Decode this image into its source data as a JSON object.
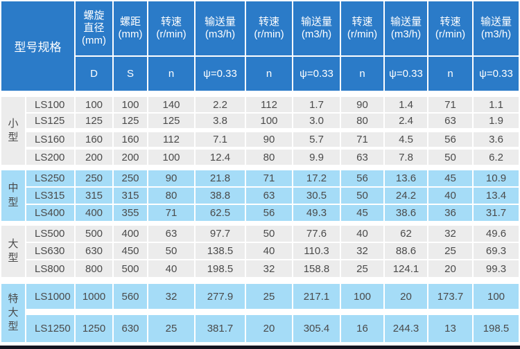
{
  "colors": {
    "header_bg": "#2b7bc8",
    "header_text": "#ffffff",
    "row_gray": "#ececec",
    "row_blue": "#a5dcf7",
    "text": "#4a4a4a",
    "bottom_bar": "#14141f"
  },
  "table": {
    "corner": "型号规格",
    "columns": [
      {
        "label": "螺旋直径",
        "unit": "(mm)",
        "sub": "D"
      },
      {
        "label": "螺距",
        "unit": "(mm)",
        "sub": "S"
      },
      {
        "label": "转速",
        "unit": "(r/min)",
        "sub": "n"
      },
      {
        "label": "输送量",
        "unit": "(m3/h)",
        "sub": "ψ=0.33"
      },
      {
        "label": "转速",
        "unit": "(r/min)",
        "sub": "n"
      },
      {
        "label": "输送量",
        "unit": "(m3/h)",
        "sub": "ψ=0.33"
      },
      {
        "label": "转速",
        "unit": "(r/min)",
        "sub": "n"
      },
      {
        "label": "输送量",
        "unit": "(m3/h)",
        "sub": "ψ=0.33"
      },
      {
        "label": "转速",
        "unit": "(r/min)",
        "sub": "n"
      },
      {
        "label": "输送量",
        "unit": "(m3/h)",
        "sub": "ψ=0.33"
      }
    ],
    "groups": [
      {
        "name": "小型",
        "tone": "gray",
        "rows": [
          {
            "model": "LS100",
            "values": [
              "100",
              "100",
              "140",
              "2.2",
              "112",
              "1.7",
              "90",
              "1.4",
              "71",
              "1.1"
            ]
          },
          {
            "model": "LS125",
            "values": [
              "125",
              "125",
              "125",
              "3.8",
              "100",
              "3.0",
              "80",
              "2.4",
              "63",
              "1.9"
            ]
          },
          {
            "model": "LS160",
            "values": [
              "160",
              "160",
              "112",
              "7.1",
              "90",
              "5.7",
              "71",
              "4.5",
              "56",
              "3.6"
            ]
          },
          {
            "model": "LS200",
            "values": [
              "200",
              "200",
              "100",
              "12.4",
              "80",
              "9.9",
              "63",
              "7.8",
              "50",
              "6.2"
            ]
          }
        ]
      },
      {
        "name": "中型",
        "tone": "blue",
        "rows": [
          {
            "model": "LS250",
            "values": [
              "250",
              "250",
              "90",
              "21.8",
              "71",
              "17.2",
              "56",
              "13.6",
              "45",
              "10.9"
            ]
          },
          {
            "model": "LS315",
            "values": [
              "315",
              "315",
              "80",
              "38.8",
              "63",
              "30.5",
              "50",
              "24.2",
              "40",
              "13.4"
            ]
          },
          {
            "model": "LS400",
            "values": [
              "400",
              "355",
              "71",
              "62.5",
              "56",
              "49.3",
              "45",
              "38.6",
              "36",
              "31.7"
            ]
          }
        ]
      },
      {
        "name": "大型",
        "tone": "gray",
        "rows": [
          {
            "model": "LS500",
            "values": [
              "500",
              "400",
              "63",
              "97.7",
              "50",
              "77.6",
              "40",
              "62",
              "32",
              "49.6"
            ]
          },
          {
            "model": "LS630",
            "values": [
              "630",
              "450",
              "50",
              "138.5",
              "40",
              "110.3",
              "32",
              "88.6",
              "25",
              "69.3"
            ]
          },
          {
            "model": "LS800",
            "values": [
              "800",
              "500",
              "40",
              "198.5",
              "32",
              "158.8",
              "25",
              "124.1",
              "20",
              "99.3"
            ]
          }
        ]
      },
      {
        "name": "特大型",
        "tone": "blue",
        "rows": [
          {
            "model": "LS1000",
            "values": [
              "1000",
              "560",
              "32",
              "277.9",
              "25",
              "217.1",
              "100",
              "20",
              "173.7",
              "100"
            ]
          },
          {
            "model": "LS1250",
            "values": [
              "1250",
              "630",
              "25",
              "381.7",
              "20",
              "305.4",
              "16",
              "244.3",
              "13",
              "198.5"
            ]
          }
        ]
      }
    ]
  }
}
